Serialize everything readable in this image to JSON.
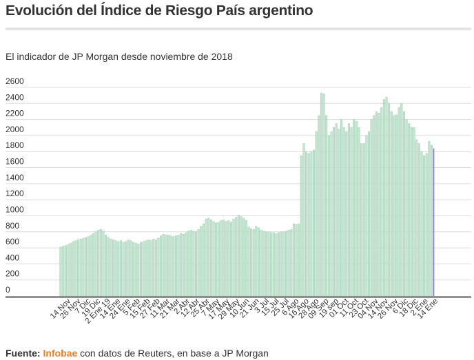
{
  "title": "Evolución del Índice de Riesgo País argentino",
  "subtitle": "El indicador de JP Morgan desde noviembre de 2018",
  "footer": {
    "label": "Fuente:",
    "source": "Infobae",
    "rest": " con datos de Reuters, en base a JP Morgan"
  },
  "colors": {
    "bar": "#c6e3d2",
    "bar_edge": "#8fcaa6",
    "last_bar": "#7b68ee",
    "grid": "#dcdcdc",
    "axis": "#555555"
  },
  "chart_data": {
    "type": "bar",
    "title": "Evolución del Índice de Riesgo País argentino",
    "xlabel": "",
    "ylabel": "",
    "ylim": [
      0,
      2600
    ],
    "yticks": [
      0,
      200,
      400,
      600,
      800,
      1000,
      1200,
      1400,
      1600,
      1800,
      2000,
      2200,
      2400,
      2600
    ],
    "grid": true,
    "xtick_labels": [
      "14 Nov",
      "26 Nov",
      "7 Dic",
      "19 Dic",
      "2 Ene 19",
      "14 Ene",
      "24 Ene",
      "5 Feb",
      "15 Feb",
      "27 Feb",
      "11 Mar",
      "21 Mar",
      "2 Abr",
      "12 Abr",
      "25 Abr",
      "7 May",
      "17 May",
      "29 May",
      "10 Jun",
      "21 Jun",
      "3 Jul",
      "15 Jul",
      "25 Jul",
      "6 Ago",
      "16 Ago",
      "28 Ago",
      "09 Sep",
      "19 sep",
      "01 Oct",
      "11 Oct",
      "23 Oct",
      "04 Nov",
      "14 Nov",
      "26 Nov",
      "6 Dic",
      "18 Dic",
      "2 Ene",
      "14 Ene"
    ],
    "values": [
      610,
      620,
      630,
      645,
      660,
      680,
      690,
      700,
      710,
      720,
      730,
      740,
      760,
      780,
      800,
      820,
      830,
      810,
      760,
      730,
      710,
      700,
      690,
      680,
      690,
      670,
      680,
      700,
      690,
      670,
      660,
      650,
      670,
      680,
      690,
      700,
      690,
      710,
      700,
      720,
      750,
      770,
      760,
      760,
      750,
      740,
      750,
      760,
      780,
      770,
      790,
      810,
      820,
      810,
      800,
      830,
      870,
      900,
      960,
      970,
      950,
      930,
      910,
      920,
      940,
      950,
      930,
      940,
      920,
      960,
      980,
      1010,
      990,
      970,
      940,
      860,
      840,
      830,
      870,
      850,
      820,
      810,
      800,
      800,
      790,
      790,
      780,
      790,
      800,
      800,
      810,
      820,
      830,
      900,
      890,
      900,
      1750,
      1900,
      1800,
      1780,
      1800,
      1820,
      2050,
      2250,
      2530,
      2520,
      2250,
      2000,
      2050,
      2100,
      2150,
      2080,
      2200,
      2100,
      2050,
      2150,
      2100,
      2200,
      2180,
      2100,
      1900,
      1900,
      2000,
      2050,
      2200,
      2250,
      2300,
      2280,
      2350,
      2450,
      2480,
      2400,
      2300,
      2250,
      2260,
      2350,
      2400,
      2300,
      2200,
      2150,
      2100,
      2100,
      1950,
      1900,
      1800,
      1750,
      1780,
      1930,
      1880,
      1840
    ]
  }
}
